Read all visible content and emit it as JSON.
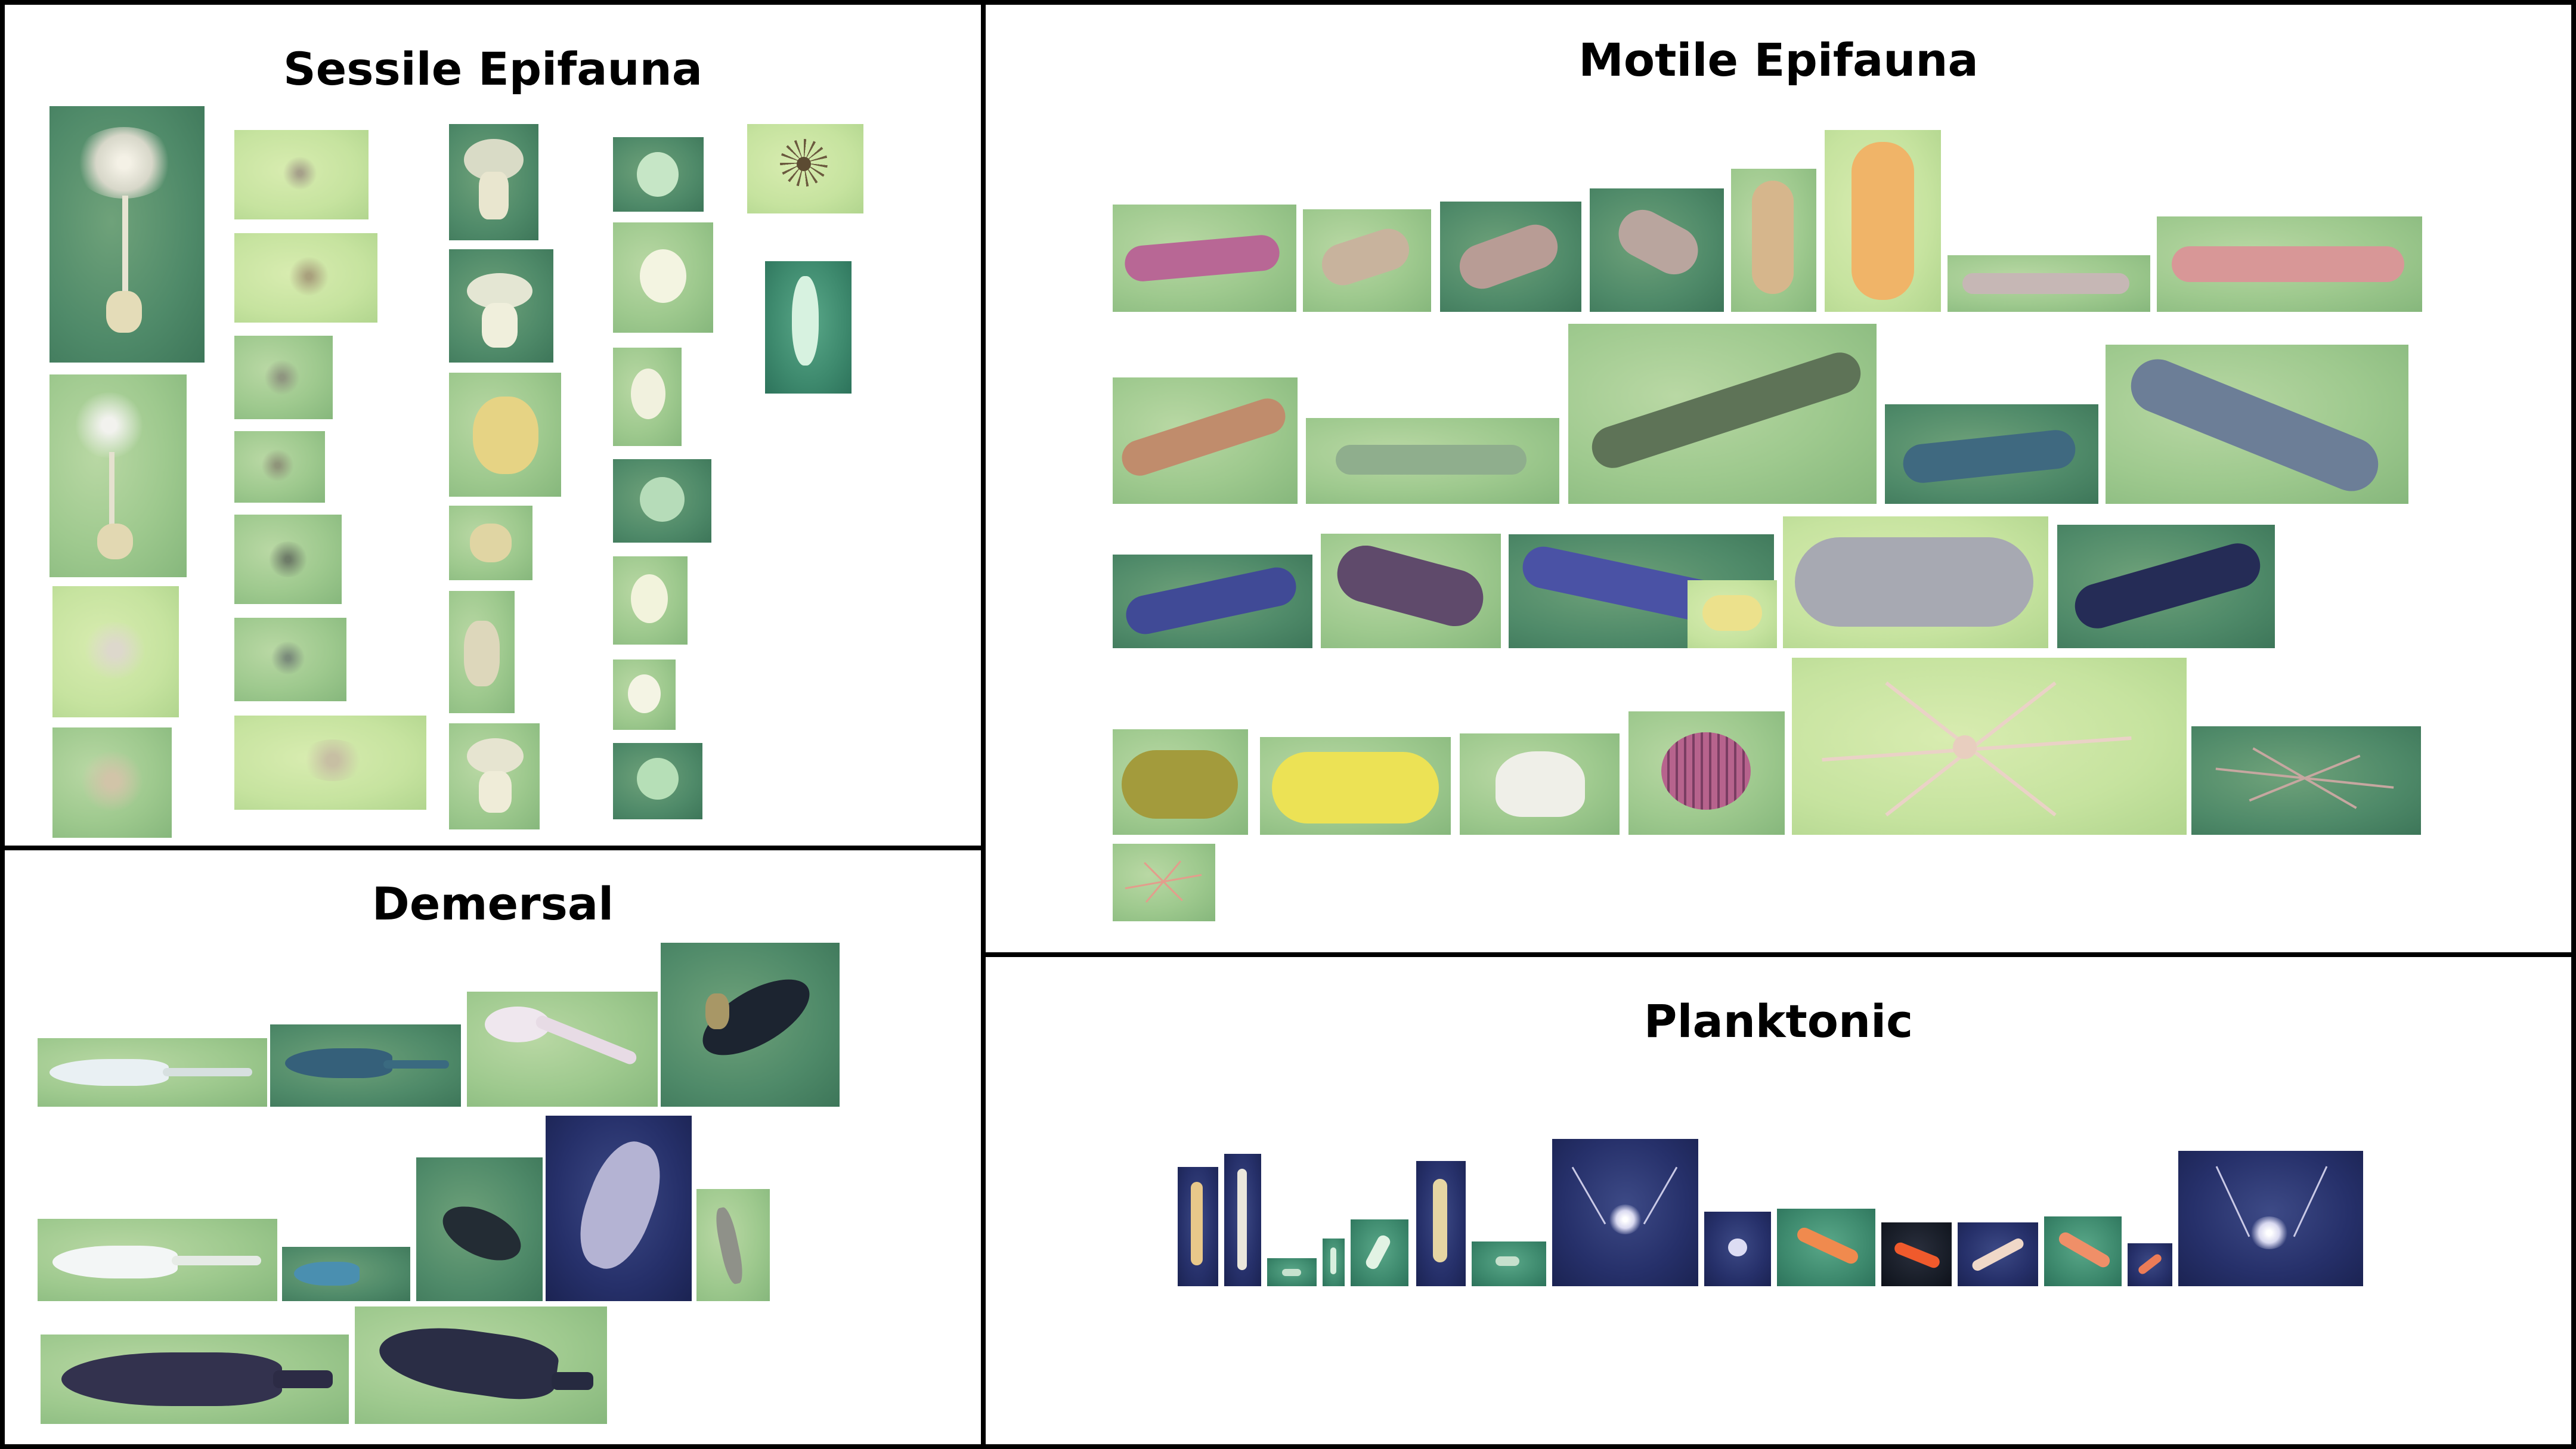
{
  "panels": {
    "sessile": {
      "title": "Sessile Epifauna"
    },
    "motile": {
      "title": "Motile Epifauna"
    },
    "demersal": {
      "title": "Demersal"
    },
    "planktonic": {
      "title": "Planktonic"
    }
  },
  "colors": {
    "panel_border": "#000000",
    "seafloor_green": "#a6cf92",
    "water_blue": "#26306a"
  }
}
